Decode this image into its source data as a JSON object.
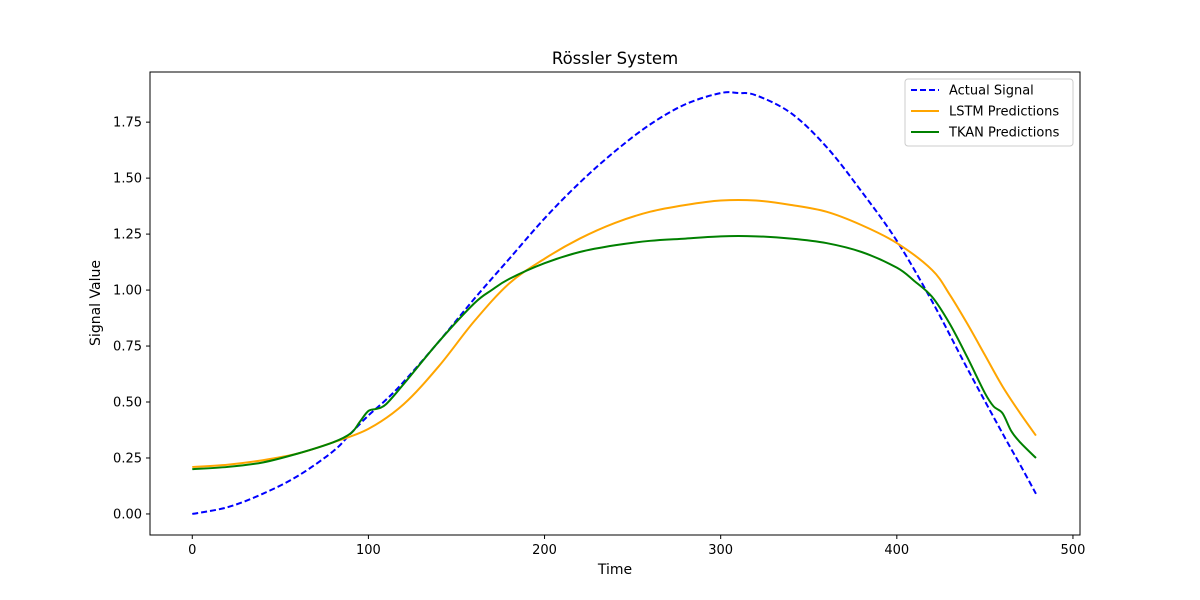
{
  "chart_data": {
    "type": "line",
    "title": "Rössler System",
    "xlabel": "Time",
    "ylabel": "Signal Value",
    "xlim": [
      -24,
      504
    ],
    "ylim": [
      -0.094,
      1.974
    ],
    "xticks": [
      0,
      100,
      200,
      300,
      400,
      500
    ],
    "xtick_labels": [
      "0",
      "100",
      "200",
      "300",
      "400",
      "500"
    ],
    "yticks": [
      0.0,
      0.25,
      0.5,
      0.75,
      1.0,
      1.25,
      1.5,
      1.75
    ],
    "ytick_labels": [
      "0.00",
      "0.25",
      "0.50",
      "0.75",
      "1.00",
      "1.25",
      "1.50",
      "1.75"
    ],
    "grid": false,
    "legend_position": "top-right",
    "series": [
      {
        "name": "Actual Signal",
        "color": "#0000ff",
        "dash": "dashed",
        "x": [
          0,
          20,
          40,
          60,
          80,
          90,
          100,
          110,
          120,
          140,
          160,
          180,
          200,
          220,
          240,
          260,
          280,
          300,
          310,
          320,
          340,
          360,
          380,
          400,
          420,
          440,
          460,
          470,
          479
        ],
        "y": [
          0.0,
          0.03,
          0.09,
          0.17,
          0.28,
          0.36,
          0.44,
          0.51,
          0.59,
          0.77,
          0.96,
          1.14,
          1.32,
          1.48,
          1.62,
          1.74,
          1.83,
          1.88,
          1.88,
          1.87,
          1.79,
          1.64,
          1.44,
          1.22,
          0.95,
          0.65,
          0.36,
          0.22,
          0.09
        ]
      },
      {
        "name": "LSTM Predictions",
        "color": "#ffa500",
        "dash": "solid",
        "x": [
          0,
          20,
          40,
          60,
          80,
          100,
          120,
          140,
          160,
          180,
          200,
          220,
          240,
          260,
          280,
          300,
          320,
          340,
          360,
          380,
          400,
          420,
          430,
          440,
          450,
          460,
          470,
          479
        ],
        "y": [
          0.21,
          0.22,
          0.24,
          0.27,
          0.32,
          0.38,
          0.49,
          0.66,
          0.86,
          1.03,
          1.14,
          1.23,
          1.3,
          1.35,
          1.38,
          1.4,
          1.4,
          1.38,
          1.35,
          1.29,
          1.21,
          1.09,
          0.98,
          0.85,
          0.71,
          0.57,
          0.45,
          0.35
        ]
      },
      {
        "name": "TKAN Predictions",
        "color": "#008000",
        "dash": "solid",
        "x": [
          0,
          20,
          40,
          60,
          80,
          90,
          95,
          100,
          105,
          110,
          120,
          140,
          160,
          170,
          180,
          200,
          220,
          240,
          260,
          280,
          300,
          320,
          340,
          360,
          380,
          400,
          410,
          420,
          430,
          440,
          450,
          455,
          460,
          465,
          470,
          479
        ],
        "y": [
          0.2,
          0.21,
          0.23,
          0.27,
          0.32,
          0.36,
          0.41,
          0.46,
          0.47,
          0.49,
          0.58,
          0.77,
          0.94,
          1.0,
          1.05,
          1.12,
          1.17,
          1.2,
          1.22,
          1.23,
          1.24,
          1.24,
          1.23,
          1.21,
          1.17,
          1.1,
          1.04,
          0.97,
          0.85,
          0.7,
          0.54,
          0.48,
          0.45,
          0.37,
          0.32,
          0.25
        ]
      }
    ]
  }
}
